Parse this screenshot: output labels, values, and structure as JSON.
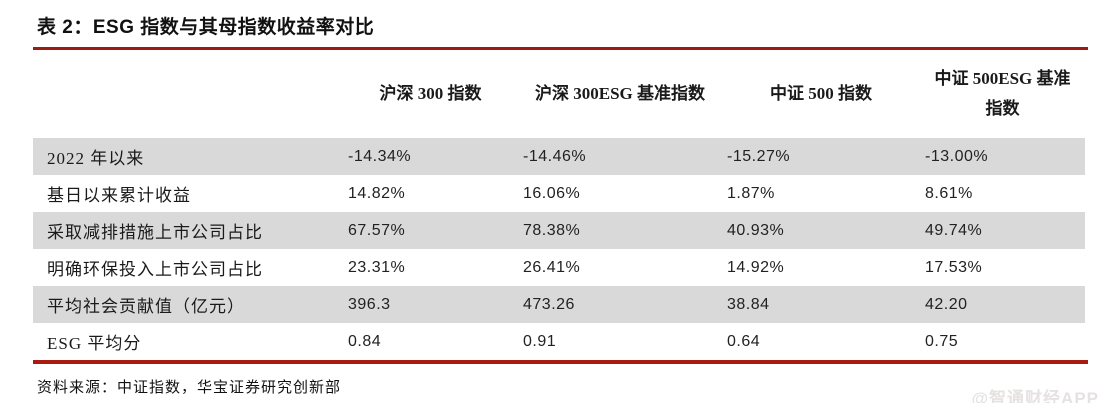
{
  "title": "表 2：ESG 指数与其母指数收益率对比",
  "table": {
    "corner": "",
    "columns": [
      "沪深 300 指数",
      "沪深 300ESG 基准指数",
      "中证 500 指数",
      "中证 500ESG 基准指数"
    ],
    "rows": [
      {
        "label": "2022 年以来",
        "values": [
          "-14.34%",
          "-14.46%",
          "-15.27%",
          "-13.00%"
        ]
      },
      {
        "label": "基日以来累计收益",
        "values": [
          "14.82%",
          "16.06%",
          "1.87%",
          "8.61%"
        ]
      },
      {
        "label": "采取减排措施上市公司占比",
        "values": [
          "67.57%",
          "78.38%",
          "40.93%",
          "49.74%"
        ]
      },
      {
        "label": "明确环保投入上市公司占比",
        "values": [
          "23.31%",
          "26.41%",
          "14.92%",
          "17.53%"
        ]
      },
      {
        "label": "平均社会贡献值（亿元）",
        "values": [
          "396.3",
          "473.26",
          "38.84",
          "42.20"
        ]
      },
      {
        "label": "ESG 平均分",
        "values": [
          "0.84",
          "0.91",
          "0.64",
          "0.75"
        ]
      }
    ]
  },
  "source": "资料来源：中证指数，华宝证券研究创新部",
  "watermark": "@智通财经APP",
  "colors": {
    "accent_line": "#9c1b12",
    "row_alt_background": "#d9d9d9"
  }
}
